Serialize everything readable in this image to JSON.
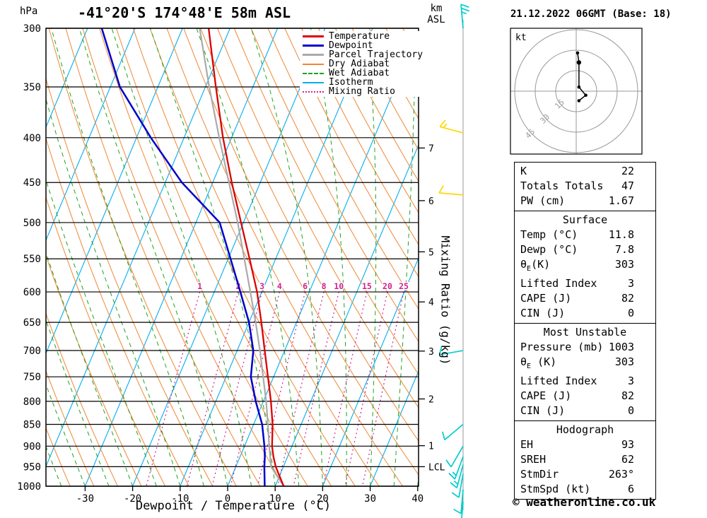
{
  "header": {
    "station": "-41°20'S 174°48'E 58m ASL",
    "datetime": "21.12.2022 06GMT (Base: 18)"
  },
  "axes": {
    "pressure_unit": "hPa",
    "altitude_unit_km": "km",
    "altitude_unit_asl": "ASL",
    "xlabel": "Dewpoint / Temperature (°C)",
    "mixing_axis_label": "Mixing Ratio (g/kg)",
    "pressure_ticks": [
      300,
      350,
      400,
      450,
      500,
      550,
      600,
      650,
      700,
      750,
      800,
      850,
      900,
      950,
      1000
    ],
    "temp_ticks": [
      -30,
      -20,
      -10,
      0,
      10,
      20,
      30,
      40
    ],
    "km_ticks": [
      [
        1,
        899
      ],
      [
        2,
        795
      ],
      [
        3,
        701
      ],
      [
        4,
        616
      ],
      [
        5,
        540
      ],
      [
        6,
        472
      ],
      [
        7,
        411
      ]
    ],
    "lcl": {
      "label": "LCL",
      "p": 950
    }
  },
  "legend": [
    {
      "label": "Temperature",
      "color": "#DD0000",
      "style": "solid",
      "width": 3
    },
    {
      "label": "Dewpoint",
      "color": "#0000CC",
      "style": "solid",
      "width": 3
    },
    {
      "label": "Parcel Trajectory",
      "color": "#AAAAAA",
      "style": "solid",
      "width": 3
    },
    {
      "label": "Dry Adiabat",
      "color": "#EE8833",
      "style": "solid",
      "width": 2
    },
    {
      "label": "Wet Adiabat",
      "color": "#1CA41C",
      "style": "dashed",
      "width": 2
    },
    {
      "label": "Isotherm",
      "color": "#00AEEF",
      "style": "solid",
      "width": 2
    },
    {
      "label": "Mixing Ratio",
      "color": "#D02090",
      "style": "dotted",
      "width": 2
    }
  ],
  "chart_data": {
    "type": "skewt-log-p",
    "title": "-41°20'S 174°48'E 58m ASL",
    "pressure_range_hpa": [
      300,
      1000
    ],
    "temp_axis_ticks_c": [
      -30,
      -20,
      -10,
      0,
      10,
      20,
      30,
      40
    ],
    "temperature_profile_p_t": [
      [
        1000,
        11.8
      ],
      [
        950,
        8.4
      ],
      [
        925,
        7.0
      ],
      [
        900,
        5.8
      ],
      [
        850,
        4.0
      ],
      [
        800,
        1.6
      ],
      [
        750,
        -1.2
      ],
      [
        700,
        -4.2
      ],
      [
        650,
        -7.4
      ],
      [
        600,
        -11.0
      ],
      [
        550,
        -15.5
      ],
      [
        500,
        -20.5
      ],
      [
        450,
        -26.0
      ],
      [
        400,
        -31.8
      ],
      [
        350,
        -37.8
      ],
      [
        300,
        -44.5
      ]
    ],
    "dewpoint_profile_p_t": [
      [
        1000,
        7.8
      ],
      [
        950,
        6.0
      ],
      [
        925,
        5.2
      ],
      [
        900,
        4.2
      ],
      [
        850,
        1.8
      ],
      [
        800,
        -1.6
      ],
      [
        750,
        -4.8
      ],
      [
        700,
        -6.6
      ],
      [
        650,
        -10.0
      ],
      [
        600,
        -14.5
      ],
      [
        550,
        -19.5
      ],
      [
        500,
        -25.0
      ],
      [
        450,
        -36.5
      ],
      [
        400,
        -47.0
      ],
      [
        350,
        -58.0
      ],
      [
        300,
        -67.0
      ]
    ],
    "parcel_profile_p_t": [
      [
        1000,
        11.8
      ],
      [
        950,
        7.4
      ],
      [
        900,
        5.2
      ],
      [
        850,
        3.0
      ],
      [
        800,
        0.6
      ],
      [
        750,
        -2.2
      ],
      [
        700,
        -5.2
      ],
      [
        650,
        -8.6
      ],
      [
        600,
        -12.4
      ],
      [
        550,
        -16.6
      ],
      [
        500,
        -21.2
      ],
      [
        450,
        -26.6
      ],
      [
        400,
        -32.6
      ],
      [
        350,
        -39.2
      ],
      [
        300,
        -46.4
      ]
    ],
    "isotherms": {
      "t_min": -100,
      "t_max": 40,
      "step": 10
    },
    "dry_adiabats": {
      "theta_k_min": 235,
      "theta_k_max": 385,
      "step": 5
    },
    "wet_adiabats": {
      "t0_c_min": -40,
      "t0_c_max": 40,
      "step": 5
    },
    "mixing_ratio_lines_gkg": [
      1,
      2,
      3,
      4,
      6,
      8,
      10,
      15,
      20,
      25
    ],
    "wind_barbs": [
      [
        300,
        355,
        25,
        "cyan"
      ],
      [
        395,
        285,
        15,
        "yellow"
      ],
      [
        465,
        275,
        10,
        "yellow"
      ],
      [
        700,
        260,
        10,
        "cyan"
      ],
      [
        850,
        230,
        10,
        "cyan"
      ],
      [
        900,
        210,
        10,
        "cyan"
      ],
      [
        925,
        200,
        15,
        "cyan"
      ],
      [
        945,
        195,
        15,
        "cyan"
      ],
      [
        968,
        190,
        10,
        "cyan"
      ],
      [
        1009,
        185,
        10,
        "cyan"
      ],
      [
        1042,
        185,
        10,
        "cyan"
      ]
    ],
    "hodograph": {
      "unit_label": "kt",
      "rings_kt": [
        15,
        30,
        45
      ],
      "trace_uv_kt": [
        [
          1,
          28
        ],
        [
          2,
          21
        ],
        [
          2,
          3
        ],
        [
          7,
          -3
        ],
        [
          2,
          -7
        ]
      ]
    }
  },
  "stats_panels": [
    {
      "header": "",
      "rows": [
        [
          "K",
          "22"
        ],
        [
          "Totals Totals",
          "47"
        ],
        [
          "PW (cm)",
          "1.67"
        ]
      ]
    },
    {
      "header": "Surface",
      "rows": [
        [
          "Temp (°C)",
          "11.8"
        ],
        [
          "Dewp (°C)",
          "7.8"
        ],
        [
          "θE(K)",
          "303"
        ],
        [
          "Lifted Index",
          "3"
        ],
        [
          "CAPE (J)",
          "82"
        ],
        [
          "CIN (J)",
          "0"
        ]
      ]
    },
    {
      "header": "Most Unstable",
      "rows": [
        [
          "Pressure (mb)",
          "1003"
        ],
        [
          "θE (K)",
          "303"
        ],
        [
          "Lifted Index",
          "3"
        ],
        [
          "CAPE (J)",
          "82"
        ],
        [
          "CIN (J)",
          "0"
        ]
      ]
    },
    {
      "header": "Hodograph",
      "rows": [
        [
          "EH",
          "93"
        ],
        [
          "SREH",
          "62"
        ],
        [
          "StmDir",
          "263°"
        ],
        [
          "StmSpd (kt)",
          "6"
        ]
      ]
    }
  ],
  "footer": {
    "copyright": "© weatheronline.co.uk"
  },
  "colors": {
    "temperature": "#DD0000",
    "dewpoint": "#0000CC",
    "parcel": "#AAAAAA",
    "dry_adiabat": "#EE8833",
    "wet_adiabat": "#1CA41C",
    "isotherm": "#00AEEF",
    "mixing_ratio": "#D02090",
    "grid": "#000000",
    "barb_cyan": "#00CCCC",
    "barb_yellow": "#FFD700",
    "hodo_ring": "#999999"
  }
}
